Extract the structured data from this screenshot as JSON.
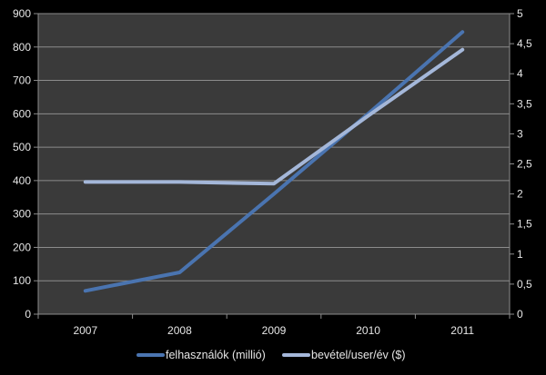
{
  "chart_data": {
    "type": "line",
    "categories": [
      "2007",
      "2008",
      "2009",
      "2010",
      "2011"
    ],
    "series": [
      {
        "name": "felhasználók (millió)",
        "axis": "left",
        "color": "#4a74b0",
        "values": [
          70,
          125,
          360,
          600,
          845
        ]
      },
      {
        "name": "bevétel/user/év ($)",
        "axis": "right",
        "color": "#a4b7d9",
        "values": [
          2.2,
          2.2,
          2.17,
          3.3,
          4.4
        ]
      }
    ],
    "y_left": {
      "min": 0,
      "max": 900,
      "step": 100,
      "tick_labels": [
        "0",
        "100",
        "200",
        "300",
        "400",
        "500",
        "600",
        "700",
        "800",
        "900"
      ]
    },
    "y_right": {
      "min": 0,
      "max": 5,
      "step": 0.5,
      "tick_labels": [
        "0",
        "0,5",
        "1",
        "1,5",
        "2",
        "2,5",
        "3",
        "3,5",
        "4",
        "4,5",
        "5"
      ]
    },
    "grid": true,
    "legend": "bottom",
    "colors": {
      "background": "#000000",
      "plot_area": "#3a3a3a",
      "gridline": "#8c8c8c",
      "text": "#e6e6e6"
    }
  }
}
